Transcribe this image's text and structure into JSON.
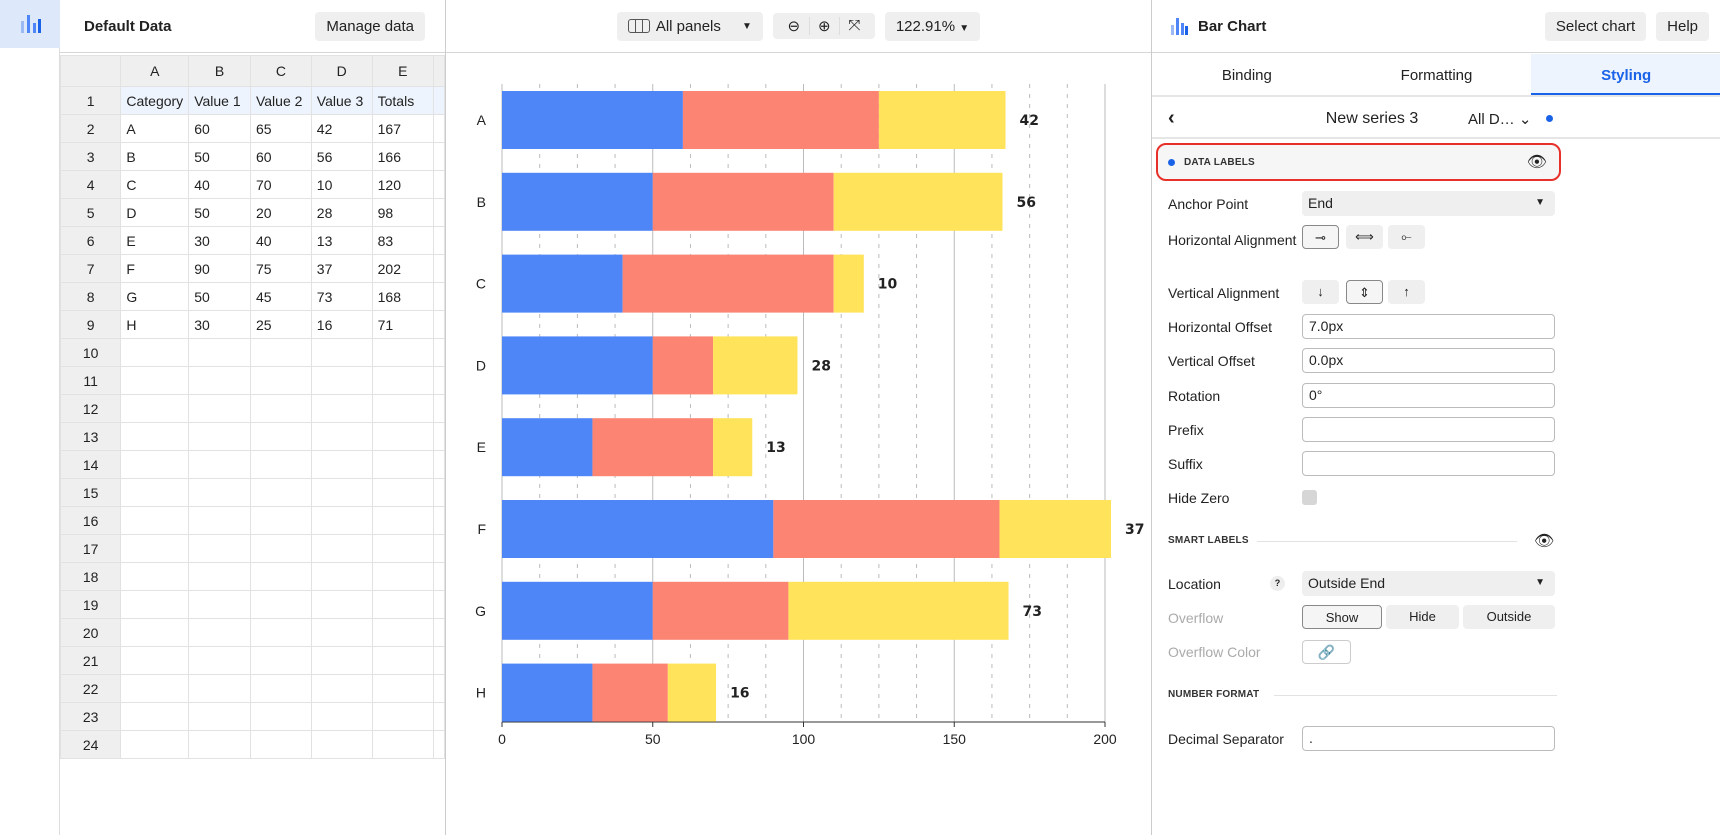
{
  "rail": {
    "icon": "bar-chart-icon"
  },
  "data_panel": {
    "title": "Default Data",
    "manage_label": "Manage data",
    "col_headers": [
      "A",
      "B",
      "C",
      "D",
      "E"
    ],
    "rows": [
      [
        "Category",
        "Value 1",
        "Value 2",
        "Value 3",
        "Totals"
      ],
      [
        "A",
        "60",
        "65",
        "42",
        "167"
      ],
      [
        "B",
        "50",
        "60",
        "56",
        "166"
      ],
      [
        "C",
        "40",
        "70",
        "10",
        "120"
      ],
      [
        "D",
        "50",
        "20",
        "28",
        "98"
      ],
      [
        "E",
        "30",
        "40",
        "13",
        "83"
      ],
      [
        "F",
        "90",
        "75",
        "37",
        "202"
      ],
      [
        "G",
        "50",
        "45",
        "73",
        "168"
      ],
      [
        "H",
        "30",
        "25",
        "16",
        "71"
      ]
    ],
    "row_count": 24
  },
  "toolbar": {
    "panels_label": "All panels",
    "zoom_label": "122.91%"
  },
  "chart_data": {
    "type": "bar",
    "orientation": "horizontal",
    "stacked": true,
    "categories": [
      "A",
      "B",
      "C",
      "D",
      "E",
      "F",
      "G",
      "H"
    ],
    "series": [
      {
        "values": [
          60,
          50,
          40,
          50,
          30,
          90,
          50,
          30
        ],
        "color": "#4e86f7"
      },
      {
        "values": [
          65,
          60,
          70,
          20,
          40,
          75,
          45,
          25
        ],
        "color": "#fb8473"
      },
      {
        "values": [
          42,
          56,
          10,
          28,
          13,
          37,
          73,
          16
        ],
        "color": "#ffe35a"
      }
    ],
    "data_labels": [
      42,
      56,
      10,
      28,
      13,
      37,
      73,
      16
    ],
    "xlim": [
      0,
      200
    ],
    "xticks": [
      0,
      50,
      100,
      150,
      200
    ],
    "grid": true
  },
  "right": {
    "title": "Bar Chart",
    "select_label": "Select chart",
    "help_label": "Help",
    "tabs": [
      "Binding",
      "Formatting",
      "Styling"
    ],
    "series_name": "New series 3",
    "series_scope": "All D…",
    "data_labels_title": "DATA LABELS",
    "anchor_label": "Anchor Point",
    "anchor_value": "End",
    "halign_label": "Horizontal Alignment",
    "valign_label": "Vertical Alignment",
    "hoffset_label": "Horizontal Offset",
    "hoffset_value": "7.0px",
    "voffset_label": "Vertical Offset",
    "voffset_value": "0.0px",
    "rotation_label": "Rotation",
    "rotation_value": "0°",
    "prefix_label": "Prefix",
    "suffix_label": "Suffix",
    "hidezero_label": "Hide Zero",
    "smart_title": "SMART LABELS",
    "location_label": "Location",
    "location_value": "Outside End",
    "overflow_label": "Overflow",
    "overflow_options": [
      "Show",
      "Hide",
      "Outside"
    ],
    "overflow_color_label": "Overflow Color",
    "number_title": "NUMBER FORMAT",
    "decimal_label": "Decimal Separator",
    "decimal_value": "."
  }
}
